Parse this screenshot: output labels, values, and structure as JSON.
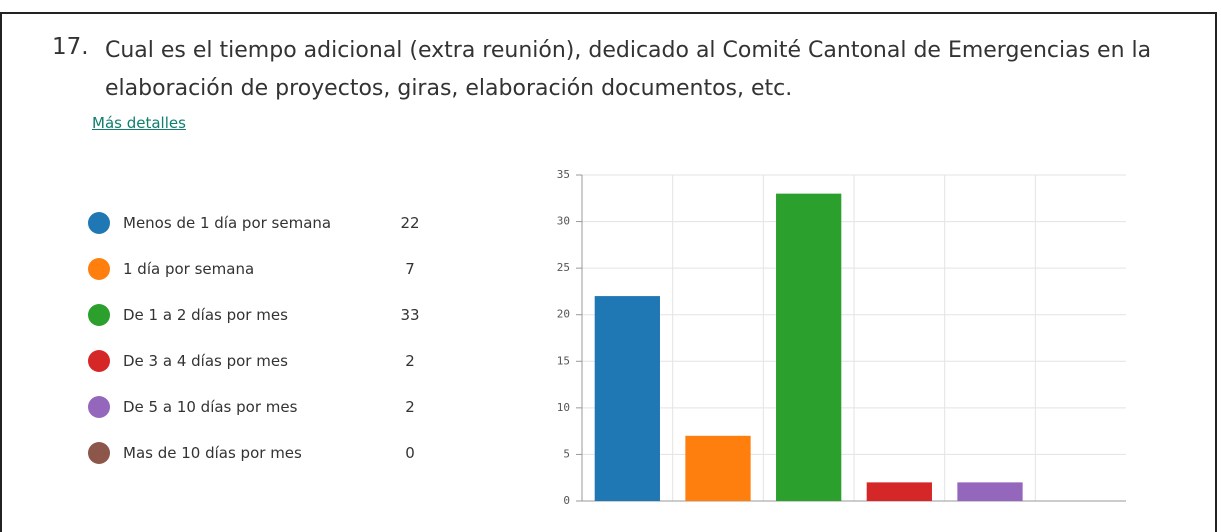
{
  "chart_data": {
    "type": "bar",
    "number": "17.",
    "title": "Cual es el tiempo adicional (extra reunión), dedicado al Comité Cantonal de Emergencias en la elaboración de proyectos, giras, elaboración documentos, etc.",
    "link": "Más detalles",
    "categories": [
      "Menos de 1 día por semana",
      "1 día por semana",
      "De 1 a 2 días por mes",
      "De 3 a 4 días por mes",
      "De 5 a 10 días por mes",
      "Mas de 10 días por mes"
    ],
    "values": [
      22,
      7,
      33,
      2,
      2,
      0
    ],
    "colors": [
      "#1f77b4",
      "#ff7f0e",
      "#2ca02c",
      "#d62728",
      "#9467bd",
      "#8c564b"
    ],
    "ylim": [
      0,
      35
    ],
    "yticks": [
      0,
      5,
      10,
      15,
      20,
      25,
      30,
      35
    ],
    "grid": true
  }
}
